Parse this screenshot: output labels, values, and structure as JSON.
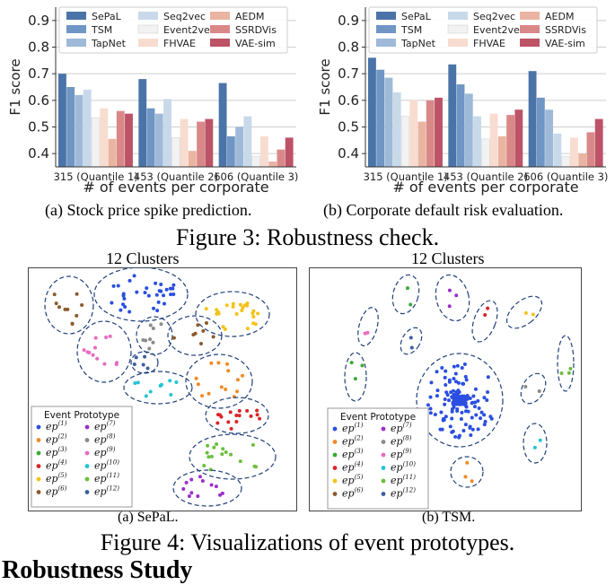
{
  "figure3": {
    "caption": "Figure 3: Robustness check.",
    "chart_data": [
      {
        "type": "bar",
        "caption": "(a) Stock price spike prediction.",
        "ylabel": "F1 score",
        "xlabel": "# of events per corporate",
        "categories": [
          "315 (Quantile 1)",
          "453 (Quantile 2)",
          "606 (Quantile 3)"
        ],
        "ylim": [
          0.35,
          0.95
        ],
        "yticks": [
          "0.4",
          "0.5",
          "0.6",
          "0.7",
          "0.8",
          "0.9"
        ],
        "grid": "horizontal",
        "legend_position": "top",
        "series": [
          {
            "name": "SePaL",
            "color": "#4a74a8",
            "values": [
              0.7,
              0.68,
              0.665
            ]
          },
          {
            "name": "TSM",
            "color": "#6f96c4",
            "values": [
              0.65,
              0.57,
              0.465
            ]
          },
          {
            "name": "TapNet",
            "color": "#9fbad8",
            "values": [
              0.62,
              0.55,
              0.5
            ]
          },
          {
            "name": "Seq2vec",
            "color": "#c8d9ea",
            "values": [
              0.64,
              0.605,
              0.54
            ]
          },
          {
            "name": "Event2vec",
            "color": "#f2f2f2",
            "values": [
              0.535,
              0.46,
              0.39
            ]
          },
          {
            "name": "FHVAE",
            "color": "#f8dcd0",
            "values": [
              0.57,
              0.53,
              0.465
            ]
          },
          {
            "name": "AEDM",
            "color": "#eab4a2",
            "values": [
              0.455,
              0.41,
              0.37
            ]
          },
          {
            "name": "SSRDVis",
            "color": "#d98888",
            "values": [
              0.56,
              0.52,
              0.415
            ]
          },
          {
            "name": "VAE-sim",
            "color": "#bc5366",
            "values": [
              0.55,
              0.53,
              0.46
            ]
          }
        ]
      },
      {
        "type": "bar",
        "caption": "(b) Corporate default risk evaluation.",
        "ylabel": "F1 score",
        "xlabel": "# of events per corporate",
        "categories": [
          "315 (Quantile 1)",
          "453 (Quantile 2)",
          "606 (Quantile 3)"
        ],
        "ylim": [
          0.35,
          0.95
        ],
        "yticks": [
          "0.4",
          "0.5",
          "0.6",
          "0.7",
          "0.8",
          "0.9"
        ],
        "grid": "horizontal",
        "legend_position": "top",
        "series": [
          {
            "name": "SePaL",
            "color": "#4a74a8",
            "values": [
              0.76,
              0.735,
              0.71
            ]
          },
          {
            "name": "TSM",
            "color": "#6f96c4",
            "values": [
              0.715,
              0.66,
              0.61
            ]
          },
          {
            "name": "TapNet",
            "color": "#9fbad8",
            "values": [
              0.685,
              0.625,
              0.565
            ]
          },
          {
            "name": "Seq2vec",
            "color": "#c8d9ea",
            "values": [
              0.63,
              0.54,
              0.475
            ]
          },
          {
            "name": "Event2vec",
            "color": "#f2f2f2",
            "values": [
              0.54,
              0.455,
              0.39
            ]
          },
          {
            "name": "FHVAE",
            "color": "#f8dcd0",
            "values": [
              0.6,
              0.55,
              0.46
            ]
          },
          {
            "name": "AEDM",
            "color": "#eab4a2",
            "values": [
              0.52,
              0.465,
              0.4
            ]
          },
          {
            "name": "SSRDVis",
            "color": "#d98888",
            "values": [
              0.6,
              0.545,
              0.48
            ]
          },
          {
            "name": "VAE-sim",
            "color": "#bc5366",
            "values": [
              0.61,
              0.565,
              0.53
            ]
          }
        ]
      }
    ]
  },
  "figure4": {
    "caption": "Figure 4: Visualizations of event prototypes.",
    "legend_title": "Event Prototype",
    "prototypes": [
      {
        "base": "ep",
        "sup": "(1)",
        "color": "#2b4fe0"
      },
      {
        "base": "ep",
        "sup": "(2)",
        "color": "#f08a24"
      },
      {
        "base": "ep",
        "sup": "(3)",
        "color": "#3aaa35"
      },
      {
        "base": "ep",
        "sup": "(4)",
        "color": "#d8262b"
      },
      {
        "base": "ep",
        "sup": "(5)",
        "color": "#f5c219"
      },
      {
        "base": "ep",
        "sup": "(6)",
        "color": "#8b5a2b"
      },
      {
        "base": "ep",
        "sup": "(7)",
        "color": "#9b2fc9"
      },
      {
        "base": "ep",
        "sup": "(8)",
        "color": "#8a8a8a"
      },
      {
        "base": "ep",
        "sup": "(9)",
        "color": "#e86bc0"
      },
      {
        "base": "ep",
        "sup": "(10)",
        "color": "#22c4d6"
      },
      {
        "base": "ep",
        "sup": "(11)",
        "color": "#6bbf3b"
      },
      {
        "base": "ep",
        "sup": "(12)",
        "color": "#3a5f9f"
      }
    ],
    "panels": [
      {
        "title": "12 Clusters",
        "caption": "(a) SePaL."
      },
      {
        "title": "12 Clusters",
        "caption": "(b) TSM."
      }
    ]
  },
  "section": {
    "heading": "Robustness Study"
  }
}
